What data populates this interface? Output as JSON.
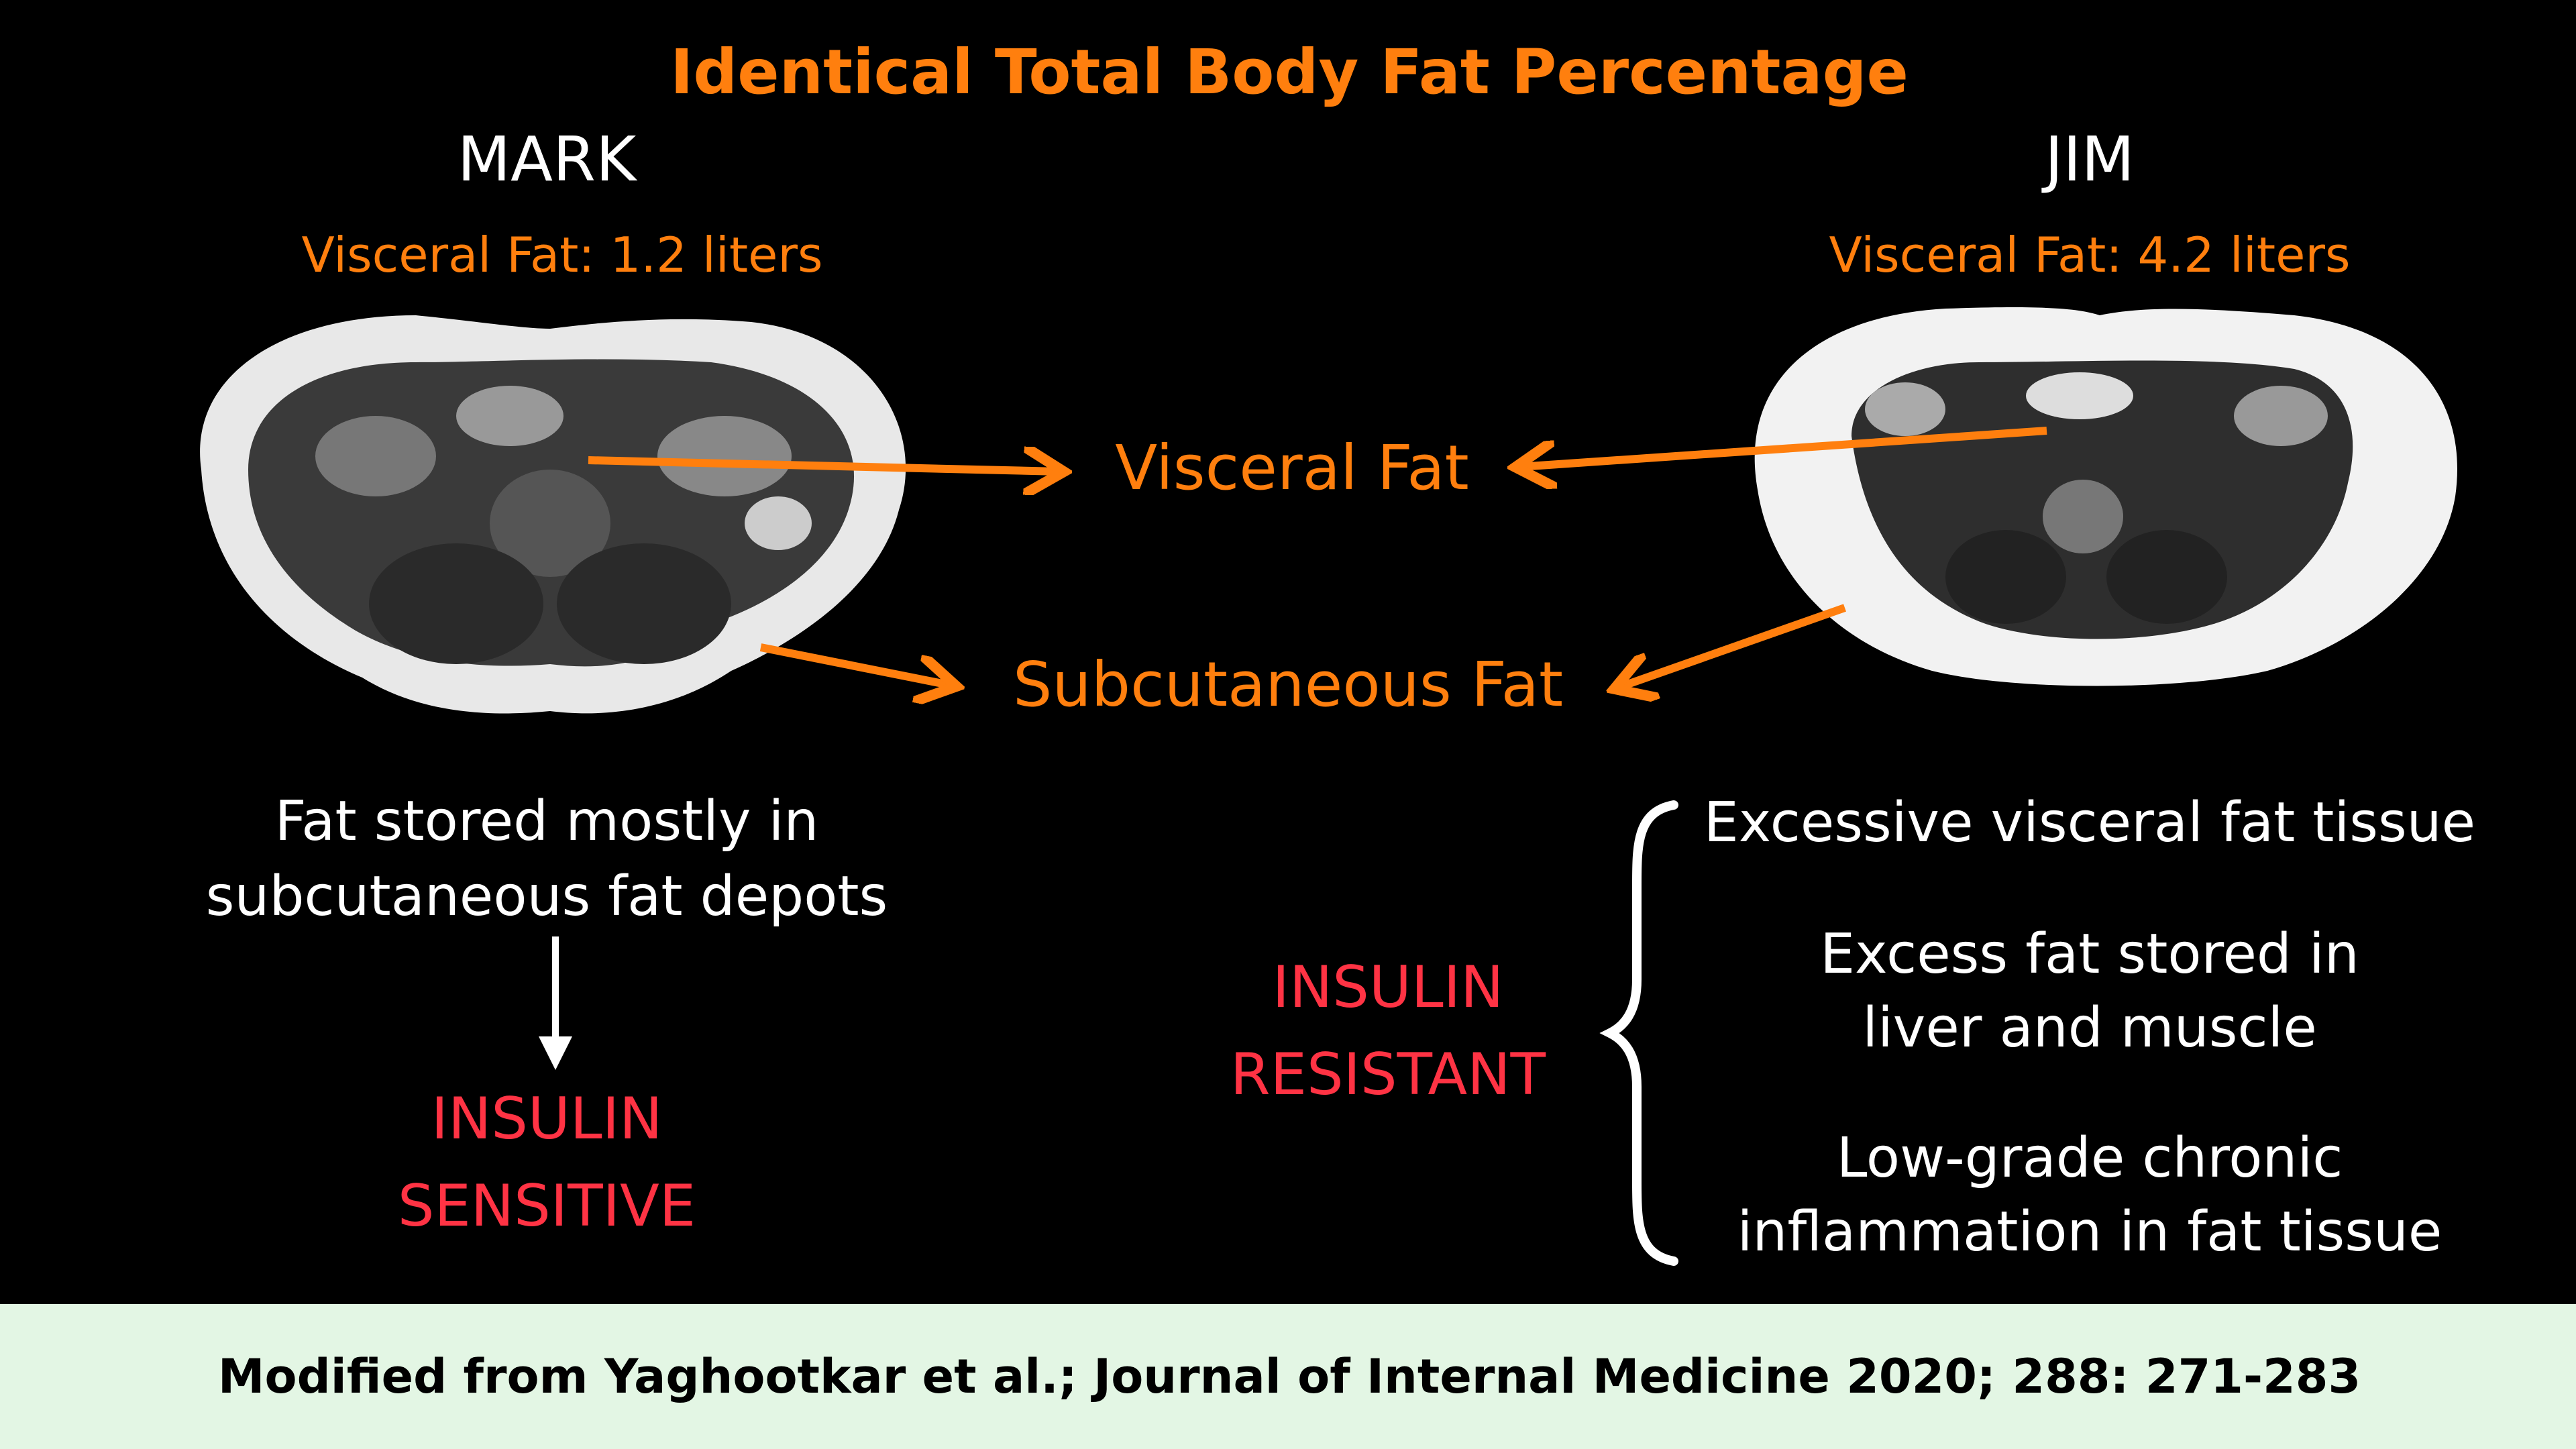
{
  "title": "Identical Total Body Fat Percentage",
  "left": {
    "name": "MARK",
    "visceral_fat": "Visceral Fat: 1.2 liters",
    "description": [
      "Fat stored mostly in",
      "subcutaneous fat depots"
    ],
    "outcome": [
      "INSULIN",
      "SENSITIVE"
    ]
  },
  "right": {
    "name": "JIM",
    "visceral_fat": "Visceral Fat: 4.2 liters",
    "outcome": [
      "INSULIN",
      "RESISTANT"
    ],
    "points": [
      [
        "Excessive visceral fat tissue"
      ],
      [
        "Excess fat stored in",
        "liver and muscle"
      ],
      [
        "Low-grade chronic",
        "inflammation in fat tissue"
      ]
    ]
  },
  "labels": {
    "visceral": "Visceral Fat",
    "subcutaneous": "Subcutaneous Fat"
  },
  "footer": "Modified from Yaghootkar et al.; Journal of Internal Medicine 2020; 288: 271-283",
  "colors": {
    "accent": "#ff7f0e",
    "alert": "#ff3344",
    "footer_bg": "#e3f6e4"
  }
}
